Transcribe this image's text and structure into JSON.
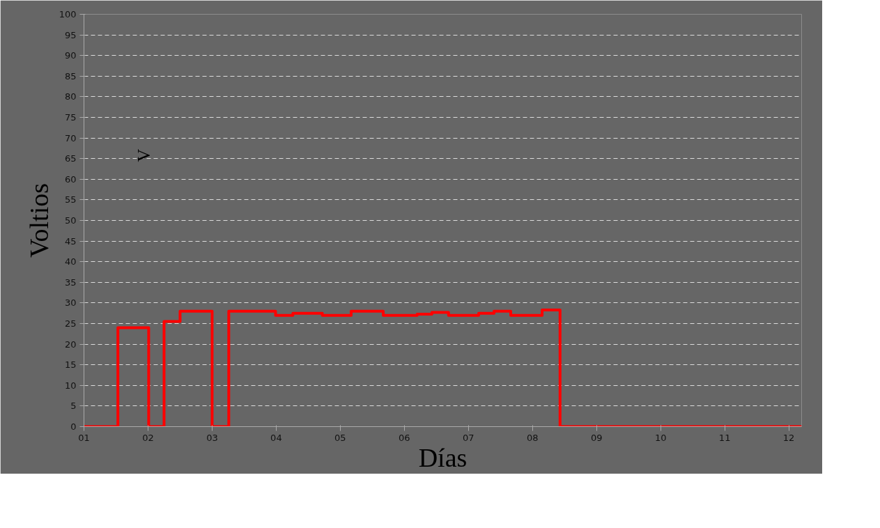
{
  "chart_data": {
    "type": "step",
    "xlabel": "Días",
    "ylabel": "Voltios",
    "annotations": [
      "V"
    ],
    "x": [
      1,
      1.53,
      2.01,
      2.25,
      2.5,
      3.0,
      3.26,
      3.99,
      4.26,
      4.72,
      5.17,
      5.67,
      6.2,
      6.43,
      6.69,
      7.16,
      7.4,
      7.66,
      8.15,
      8.43,
      12.2
    ],
    "series": [
      {
        "color": "#ff0000",
        "values": [
          0,
          24,
          0,
          25.5,
          28,
          0,
          28,
          27,
          27.5,
          27,
          28,
          27,
          27.3,
          27.7,
          27,
          27.5,
          28,
          27,
          28.3,
          0,
          0
        ]
      }
    ],
    "xlim": [
      1,
      12.2
    ],
    "xticks": [
      {
        "value": 1,
        "label": "01"
      },
      {
        "value": 2,
        "label": "02"
      },
      {
        "value": 3,
        "label": "03"
      },
      {
        "value": 4,
        "label": "04"
      },
      {
        "value": 5,
        "label": "05"
      },
      {
        "value": 6,
        "label": "06"
      },
      {
        "value": 7,
        "label": "07"
      },
      {
        "value": 8,
        "label": "08"
      },
      {
        "value": 9,
        "label": "09"
      },
      {
        "value": 10,
        "label": "10"
      },
      {
        "value": 11,
        "label": "11"
      },
      {
        "value": 12,
        "label": "12"
      }
    ],
    "ylim": [
      0,
      100
    ],
    "yticks": [
      0,
      5,
      10,
      15,
      20,
      25,
      30,
      35,
      40,
      45,
      50,
      55,
      60,
      65,
      70,
      75,
      80,
      85,
      90,
      95,
      100
    ],
    "grid": "y",
    "marker": "none",
    "line_style": "solid"
  }
}
